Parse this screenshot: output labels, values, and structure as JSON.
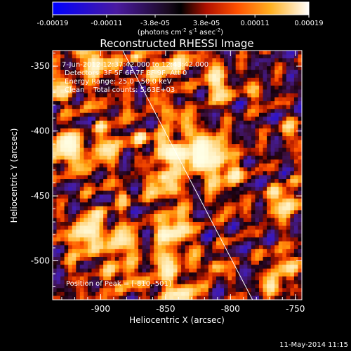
{
  "colorbar": {
    "ticks": [
      "-0.00019",
      "-0.00011",
      "-3.8e-05",
      "3.8e-05",
      "0.00011",
      "0.00019"
    ],
    "tick_values": [
      -0.00019,
      -0.00011,
      -3.8e-05,
      3.8e-05,
      0.00011,
      0.00019
    ],
    "range": [
      -0.00019,
      0.00019
    ],
    "unit_base": "(photons cm",
    "unit_exp1": "-2",
    "unit_mid": " s",
    "unit_exp2": "-1",
    "unit_tail": " asec",
    "unit_exp3": "-2",
    "unit_close": ")",
    "colormap": [
      "#0000ff",
      "#3c10a8",
      "#5a2080",
      "#000000",
      "#ff3000",
      "#ff8000",
      "#ffd040",
      "#ffffff"
    ]
  },
  "chart_data": {
    "type": "heatmap",
    "title": "Reconstructed RHESSI Image",
    "xlabel": "Heliocentric X (arcsec)",
    "ylabel": "Heliocentric Y (arcsec)",
    "xlim": [
      -937,
      -745
    ],
    "ylim": [
      -530,
      -338
    ],
    "x_ticks": [
      -900,
      -850,
      -800,
      -750
    ],
    "y_ticks": [
      -350,
      -400,
      -450,
      -500
    ],
    "x_tick_labels": [
      "-900",
      "-850",
      "-800",
      "-750"
    ],
    "y_tick_labels": [
      "-350",
      "-400",
      "-450",
      "-500"
    ],
    "grid": false,
    "limb_line": [
      [
        -883,
        -338
      ],
      [
        -783,
        -530
      ]
    ],
    "annotations": [
      "7-Jun-2012 12:37:42.000 to 12:43:42.000",
      "Detectors: 3F 5F 6F 7F 8F 9F, Att 0",
      "Energy Range: 25.0 - 50.0 keV",
      "Clean    Total counts: 5.63E+03"
    ],
    "peak_label": "Position of Peak = [-810,-501]",
    "peak_position": [
      -810,
      -501
    ],
    "total_counts": 5630,
    "energy_range_kev": [
      25.0,
      50.0
    ]
  },
  "footer": {
    "timestamp": "11-May-2014 11:15"
  }
}
